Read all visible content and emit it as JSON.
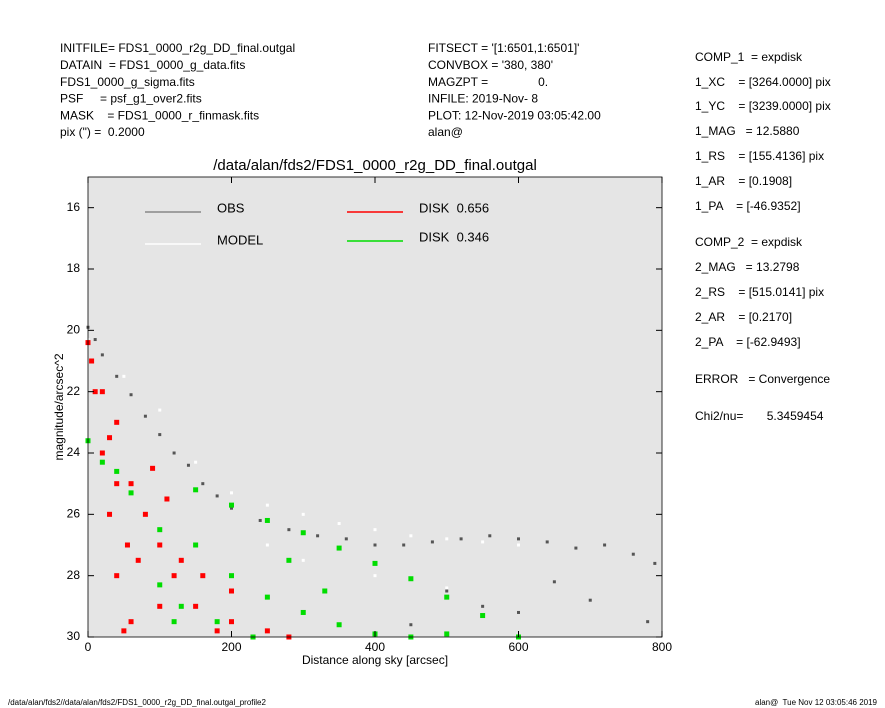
{
  "header": {
    "left": [
      "INITFILE= FDS1_0000_r2g_DD_final.outgal",
      "DATAIN  = FDS1_0000_g_data.fits",
      "FDS1_0000_g_sigma.fits",
      "PSF     = psf_g1_over2.fits",
      "MASK    = FDS1_0000_r_finmask.fits",
      "pix (\") =  0.2000"
    ],
    "middle": [
      "FITSECT = '[1:6501,1:6501]'",
      "CONVBOX = '380, 380'",
      "MAGZPT =               0.",
      "INFILE: 2019-Nov- 8",
      "PLOT: 12-Nov-2019 03:05:42.00",
      "alan@"
    ],
    "right": [
      "COMP_1  = expdisk",
      "1_XC    = [3264.0000] pix",
      "1_YC    = [3239.0000] pix",
      "1_MAG   = 12.5880",
      "1_RS    = [155.4136] pix",
      "1_AR    = [0.1908]",
      "1_PA    = [-46.9352]",
      "COMP_2  = expdisk",
      "2_MAG   = 13.2798",
      "2_RS    = [515.0141] pix",
      "2_AR    = [0.2170]",
      "2_PA    = [-62.9493]",
      "ERROR   = Convergence",
      "Chi2/nu=       5.3459454"
    ]
  },
  "footer": {
    "left": "/data/alan/fds2//data/alan/fds2/FDS1_0000_r2g_DD_final.outgal_profile2",
    "right": "alan@  Tue Nov 12 03:05:46 2019"
  },
  "chart_data": {
    "type": "scatter",
    "title": "/data/alan/fds2/FDS1_0000_r2g_DD_final.outgal",
    "x_label": "Distance along sky [arcsec]",
    "y_label": "magnitude/arcsec^2",
    "xlim": [
      0,
      800
    ],
    "xticks": [
      0,
      200,
      400,
      600,
      800
    ],
    "ylim": [
      15,
      30
    ],
    "yticks": [
      16,
      18,
      20,
      22,
      24,
      26,
      28,
      30
    ],
    "y_inverted": true,
    "series": [
      {
        "name": "OBS",
        "color": "#555555",
        "x": [
          0,
          10,
          20,
          40,
          60,
          80,
          100,
          120,
          140,
          160,
          180,
          200,
          240,
          280,
          320,
          360,
          400,
          440,
          480,
          520,
          560,
          600,
          640,
          680,
          720,
          760,
          790,
          500,
          600,
          700,
          780,
          450,
          650,
          550
        ],
        "values": [
          19.9,
          20.3,
          20.8,
          21.5,
          22.1,
          22.8,
          23.4,
          24.0,
          24.4,
          25.0,
          25.4,
          25.8,
          26.2,
          26.5,
          26.7,
          26.8,
          27.0,
          27.0,
          26.9,
          26.8,
          26.7,
          26.8,
          26.9,
          27.1,
          27.0,
          27.3,
          27.6,
          28.5,
          29.2,
          28.8,
          29.5,
          29.6,
          28.2,
          29.0
        ]
      },
      {
        "name": "MODEL",
        "color": "#ffffff",
        "x": [
          0,
          50,
          100,
          150,
          200,
          250,
          300,
          350,
          400,
          450,
          500,
          550,
          600,
          300,
          400,
          500,
          250
        ],
        "values": [
          20.3,
          21.5,
          22.6,
          24.3,
          25.3,
          25.7,
          26.0,
          26.3,
          26.5,
          26.7,
          26.8,
          26.9,
          27.0,
          27.5,
          28.0,
          28.4,
          27.0
        ]
      },
      {
        "name": "DISK  0.656",
        "color": "#ff0000",
        "x": [
          0,
          5,
          10,
          20,
          30,
          40,
          50,
          20,
          40,
          60,
          80,
          100,
          120,
          150,
          200,
          250,
          280,
          40,
          70,
          100,
          130,
          60,
          90,
          160,
          200,
          230,
          30,
          55,
          110,
          180
        ],
        "values": [
          20.4,
          21.0,
          22.0,
          24.0,
          26.0,
          28.0,
          29.8,
          22.0,
          23.0,
          25.0,
          26.0,
          27.0,
          28.0,
          29.0,
          29.5,
          29.8,
          30.0,
          25.0,
          27.5,
          29.0,
          27.5,
          29.5,
          24.5,
          28.0,
          28.5,
          30.0,
          23.5,
          27.0,
          25.5,
          29.8
        ]
      },
      {
        "name": "DISK  0.346",
        "color": "#00dd00",
        "x": [
          0,
          20,
          40,
          60,
          100,
          150,
          200,
          250,
          300,
          350,
          400,
          450,
          500,
          550,
          600,
          150,
          200,
          250,
          300,
          350,
          400,
          450,
          500,
          130,
          180,
          230,
          280,
          330,
          100,
          120
        ],
        "values": [
          23.6,
          24.3,
          24.6,
          25.3,
          26.5,
          25.2,
          25.7,
          26.2,
          26.6,
          27.1,
          27.6,
          28.1,
          28.7,
          29.3,
          30.0,
          27.0,
          28.0,
          28.7,
          29.2,
          29.6,
          29.9,
          30.0,
          29.9,
          29.0,
          29.5,
          30.0,
          27.5,
          28.5,
          28.3,
          29.5
        ]
      }
    ]
  }
}
